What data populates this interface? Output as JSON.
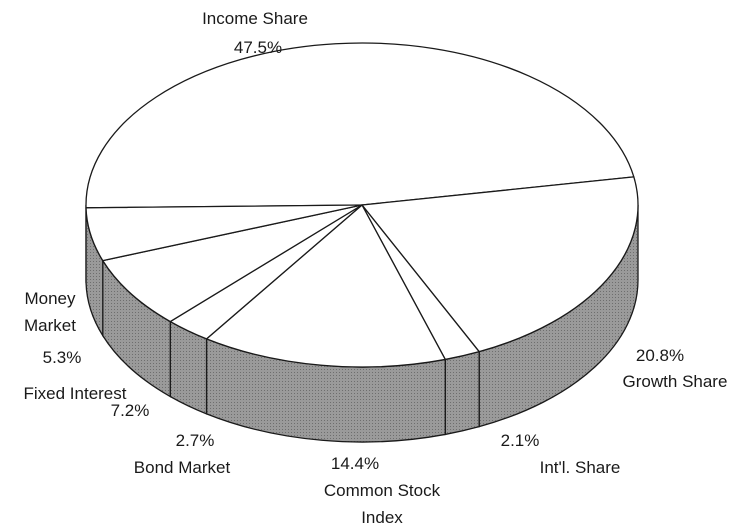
{
  "chart_data": {
    "type": "pie3d",
    "categories": [
      "Income Share",
      "Growth Share",
      "Int'l. Share",
      "Common Stock Index",
      "Bond Market",
      "Fixed Interest",
      "Money Market"
    ],
    "values": [
      47.5,
      20.8,
      2.1,
      14.4,
      2.7,
      7.2,
      5.3
    ],
    "value_labels": [
      "47.5%",
      "20.8%",
      "2.1%",
      "14.4%",
      "2.7%",
      "7.2%",
      "5.3%"
    ],
    "top_color": "#ffffff",
    "side_color": "#8c8c8c",
    "edge_color": "#1a1a1a"
  }
}
